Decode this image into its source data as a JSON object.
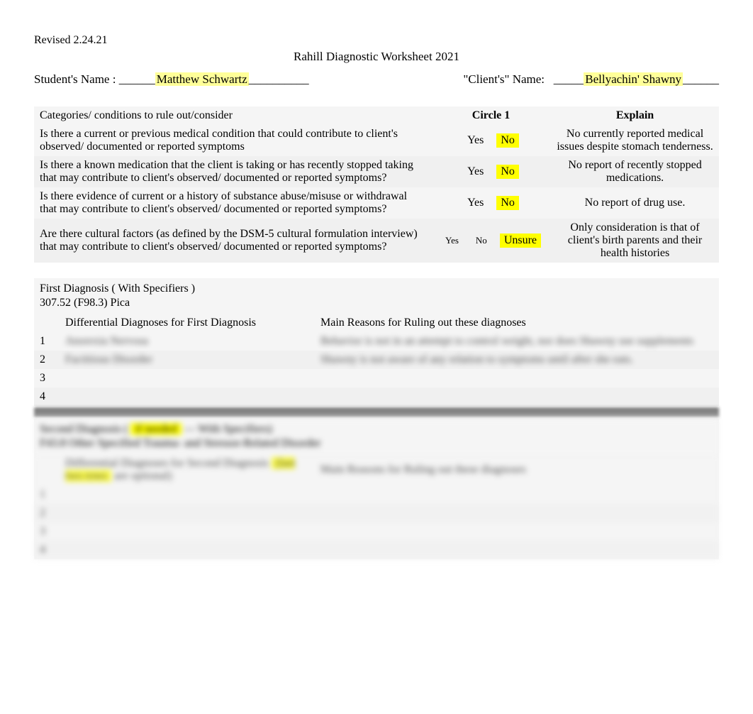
{
  "colors": {
    "highlight": "#ffff00",
    "light_highlight": "#ffff99",
    "row_bg": "#f5f5f5",
    "row_alt_bg": "#f0f0f0",
    "text": "#000000"
  },
  "revised": "Revised 2.24.21",
  "title": "Rahill Diagnostic Worksheet 2021",
  "student": {
    "label": "Student's Name  :",
    "pre_underscore": " ______",
    "value": "Matthew Schwartz",
    "post_underscore": "__________"
  },
  "client": {
    "label": "\"Client's\" Name:",
    "pre_underscore": "   _____",
    "value": "Bellyachin' Shawny",
    "post_underscore": "______"
  },
  "cat_headers": {
    "cat": "Categories/ conditions to rule out/consider",
    "circle": "Circle 1",
    "explain": "Explain"
  },
  "cat_rows": [
    {
      "q": "Is there a current or previous medical condition   that could contribute to client's observed/ documented or reported symptoms",
      "yes": "Yes",
      "no": "No",
      "selected": "no",
      "explain": "No currently reported medical issues despite stomach tenderness."
    },
    {
      "q": "Is there a known medication  that the client is taking or has recently stopped taking that may contribute to client's observed/ documented or reported symptoms?",
      "yes": "Yes",
      "no": "No",
      "selected": "no",
      "explain": "No report of recently stopped medications."
    },
    {
      "q": "Is there evidence of current or a history of substance abuse/misuse or withdrawal that may contribute to client's observed/ documented or reported symptoms?",
      "yes": "Yes",
      "no": "No",
      "selected": "no",
      "explain": "No report of drug use."
    },
    {
      "q": "Are there cultural factors   (as defined by the DSM-5 cultural formulation  interview) that may contribute to client's observed/ documented or reported symptoms?",
      "yes": "Yes",
      "no": "No",
      "unsure": "Unsure",
      "selected": "unsure",
      "small_yesno": true,
      "explain": "Only consideration is that of client's birth parents and their health histories"
    }
  ],
  "diag1": {
    "heading": "First Diagnosis ( With Specifiers )",
    "code": "307.52 (F98.3) Pica",
    "diff_header": "Differential Diagnoses for First Diagnosis",
    "reason_header": "Main Reasons for Ruling out these diagnoses",
    "rows": [
      {
        "n": "1",
        "dd": "Anorexia Nervosa",
        "reason": "Behavior is not in an attempt to control weight, nor does Shawny use supplements"
      },
      {
        "n": "2",
        "dd": "Factitious Disorder",
        "reason": "Shawny is not aware of any relation to symptoms until after she eats."
      },
      {
        "n": "3",
        "dd": "",
        "reason": ""
      },
      {
        "n": "4",
        "dd": "",
        "reason": ""
      }
    ]
  },
  "diag2": {
    "heading_line1_a": "Second Diagnosis (",
    "heading_line1_hl": "if needed",
    "heading_line1_b": "— With Specifiers)",
    "heading_line2": "F43.8 Other Specified Trauma- and Stressor-Related Disorder",
    "diff_header_a": "Differential Diagnoses for Second Diagnosis",
    "diff_header_hl": "(last two rows",
    "diff_header_b": "are optional)",
    "reason_header": "Main Reasons for Ruling out these diagnoses",
    "rows": [
      {
        "n": "1",
        "dd": "",
        "reason": ""
      },
      {
        "n": "2",
        "dd": "",
        "reason": ""
      },
      {
        "n": "3",
        "dd": "",
        "reason": ""
      },
      {
        "n": "4",
        "dd": "",
        "reason": ""
      }
    ]
  }
}
